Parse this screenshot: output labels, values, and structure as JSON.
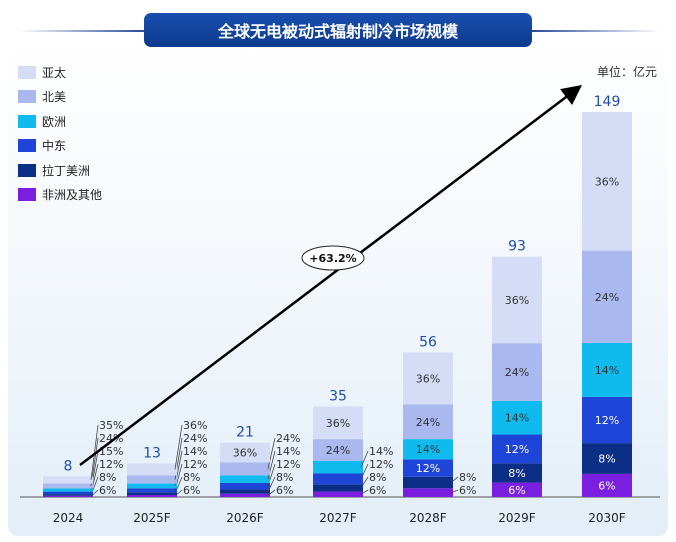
{
  "title": "全球无电被动式辐射制冷市场规模",
  "unit_label": "单位：亿元",
  "chart_data": {
    "type": "bar",
    "stacked": true,
    "title": "全球无电被动式辐射制冷市场规模",
    "categories": [
      "2024",
      "2025F",
      "2026F",
      "2027F",
      "2028F",
      "2029F",
      "2030F"
    ],
    "totals": [
      8,
      13,
      21,
      35,
      56,
      93,
      149
    ],
    "series": [
      {
        "name": "非洲及其他",
        "color": "#7a1fe0",
        "share_pct": [
          6,
          6,
          6,
          6,
          6,
          6,
          6
        ]
      },
      {
        "name": "拉丁美洲",
        "color": "#0b2f86",
        "share_pct": [
          8,
          8,
          8,
          8,
          8,
          8,
          8
        ]
      },
      {
        "name": "中东",
        "color": "#1f45d8",
        "share_pct": [
          12,
          12,
          12,
          12,
          12,
          12,
          12
        ]
      },
      {
        "name": "欧洲",
        "color": "#0fbbee",
        "share_pct": [
          15,
          14,
          14,
          14,
          14,
          14,
          14
        ]
      },
      {
        "name": "北美",
        "color": "#a9b8ee",
        "share_pct": [
          24,
          24,
          24,
          24,
          24,
          24,
          24
        ]
      },
      {
        "name": "亚太",
        "color": "#d5ddf6",
        "share_pct": [
          35,
          36,
          36,
          36,
          36,
          36,
          36
        ]
      }
    ],
    "legend_order": [
      "亚太",
      "北美",
      "欧洲",
      "中东",
      "拉丁美洲",
      "非洲及其他"
    ],
    "ylim": [
      0,
      160
    ],
    "grid": false,
    "legend_position": "top-left",
    "annotation": {
      "text": "+63.2%",
      "type": "growth-arrow"
    }
  }
}
